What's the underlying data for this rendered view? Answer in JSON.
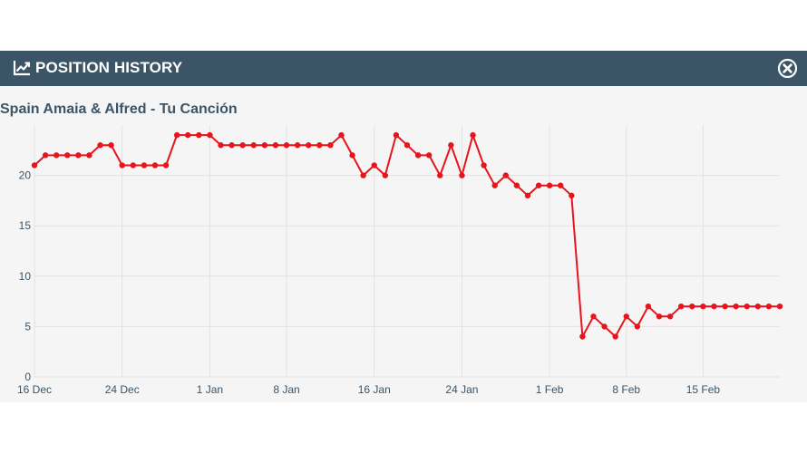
{
  "header": {
    "title": "POSITION HISTORY",
    "icon": "line-chart-icon",
    "close_icon": "close-circle-icon"
  },
  "subtitle": "Spain Amaia & Alfred - Tu Canción",
  "colors": {
    "header_bg": "#3b5466",
    "panel_bg": "#f5f5f5",
    "line": "#e8141c",
    "grid": "#e2e2e2",
    "label": "#3b5466"
  },
  "chart_data": {
    "type": "line",
    "title": "",
    "xlabel": "",
    "ylabel": "",
    "ylim": [
      0,
      25
    ],
    "y_ticks": [
      0,
      5,
      10,
      15,
      20
    ],
    "x_ticks": [
      "16 Dec",
      "24 Dec",
      "1 Jan",
      "8 Jan",
      "16 Jan",
      "24 Jan",
      "1 Feb",
      "8 Feb",
      "15 Feb"
    ],
    "grid": true,
    "start_date": "2017-12-16",
    "series": [
      {
        "values": [
          21,
          22,
          22,
          22,
          22,
          22,
          23,
          23,
          21,
          21,
          21,
          21,
          21,
          24,
          24,
          24,
          24,
          23,
          23,
          23,
          23,
          23,
          23,
          23,
          23,
          23,
          23,
          23,
          24,
          22,
          20,
          21,
          20,
          24,
          23,
          22,
          22,
          20,
          23,
          20,
          24,
          21,
          19,
          20,
          19,
          18,
          19,
          19,
          19,
          18,
          4,
          6,
          5,
          4,
          6,
          5,
          7,
          6,
          6,
          7,
          7,
          7,
          7,
          7,
          7,
          7,
          7,
          7,
          7
        ]
      }
    ]
  }
}
